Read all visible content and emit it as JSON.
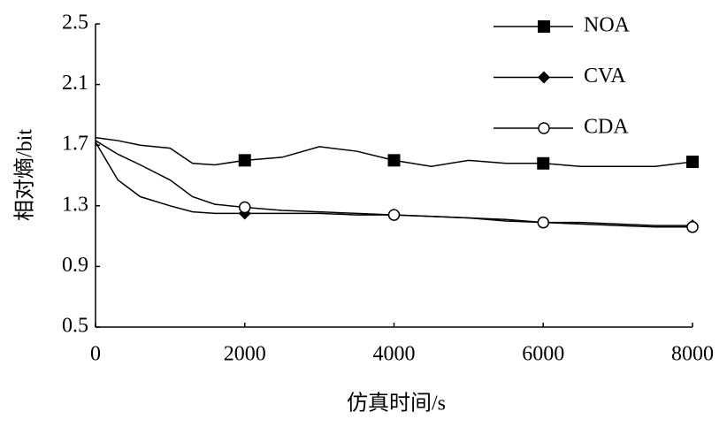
{
  "chart_data": {
    "type": "line",
    "xlabel": "仿真时间/s",
    "ylabel": "相对熵/bit",
    "x": [
      0,
      300,
      600,
      1000,
      1300,
      1600,
      2000,
      2500,
      3000,
      3500,
      4000,
      4500,
      5000,
      5500,
      6000,
      6500,
      7000,
      7500,
      8000
    ],
    "series": [
      {
        "name": "NOA",
        "color": "#000000",
        "marker": "square",
        "values": [
          1.75,
          1.73,
          1.7,
          1.68,
          1.58,
          1.57,
          1.6,
          1.62,
          1.69,
          1.66,
          1.6,
          1.56,
          1.6,
          1.58,
          1.58,
          1.56,
          1.56,
          1.56,
          1.59
        ]
      },
      {
        "name": "CVA",
        "color": "#000000",
        "marker": "diamond",
        "values": [
          1.72,
          1.47,
          1.36,
          1.3,
          1.26,
          1.25,
          1.25,
          1.25,
          1.25,
          1.24,
          1.24,
          1.23,
          1.22,
          1.21,
          1.19,
          1.19,
          1.18,
          1.17,
          1.17
        ]
      },
      {
        "name": "CDA",
        "color": "#000000",
        "marker": "circle",
        "values": [
          1.73,
          1.64,
          1.57,
          1.47,
          1.36,
          1.31,
          1.29,
          1.27,
          1.26,
          1.25,
          1.24,
          1.23,
          1.22,
          1.2,
          1.19,
          1.18,
          1.17,
          1.16,
          1.16
        ]
      }
    ],
    "marker_x": [
      2000,
      4000,
      6000,
      8000
    ],
    "xlim": [
      0,
      8000
    ],
    "xticks": [
      0,
      2000,
      4000,
      6000,
      8000
    ],
    "ylim": [
      0.5,
      2.5
    ],
    "yticks": [
      0.5,
      0.9,
      1.3,
      1.7,
      2.1,
      2.5
    ],
    "grid": false,
    "legend": "upper right"
  }
}
